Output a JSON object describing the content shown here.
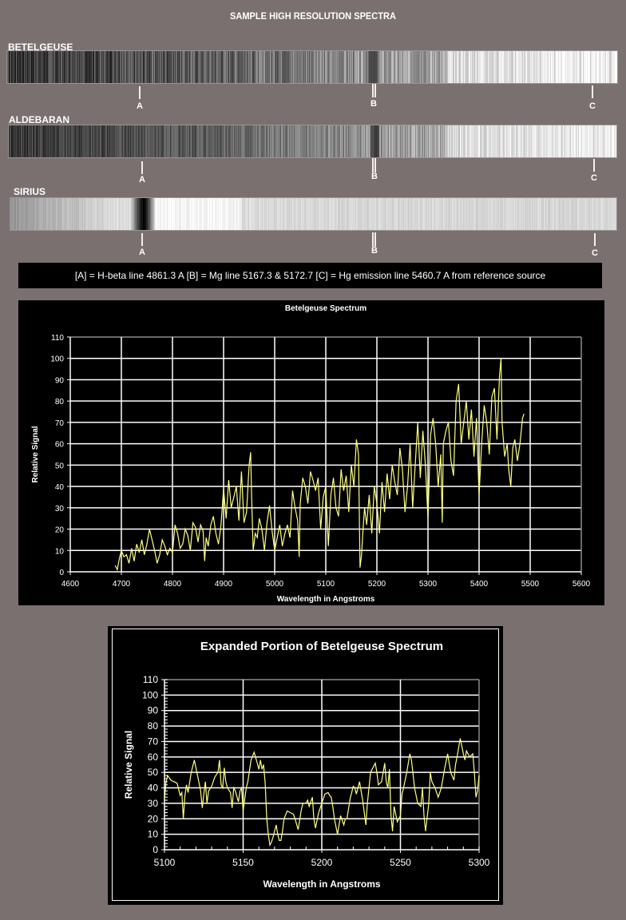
{
  "page": {
    "title": "SAMPLE HIGH RESOLUTION SPECTRA",
    "background": "#7a7070"
  },
  "spectra": [
    {
      "name": "BETELGEUSE",
      "profile": "betelgeuse"
    },
    {
      "name": "ALDEBARAN",
      "profile": "aldebaran"
    },
    {
      "name": "SIRIUS",
      "profile": "sirius"
    }
  ],
  "markers": {
    "a": "A",
    "b": "B",
    "c": "C"
  },
  "legend": {
    "text": "[A] = H-beta line 4861.3 A   [B] = Mg line 5167.3 & 5172.7    [C] = Hg emission line 5460.7 A from reference source"
  },
  "colors": {
    "trace": "#ffff80",
    "grid": "#ffffff",
    "chart_bg": "#000000"
  },
  "chart_data": [
    {
      "type": "line",
      "title": "Betelgeuse Spectrum",
      "xlabel": "Wavelength in Angstroms",
      "ylabel": "Relative Signal",
      "xlim": [
        4600,
        5600
      ],
      "ylim": [
        0,
        110
      ],
      "xticks": [
        4600,
        4700,
        4800,
        4900,
        5000,
        5100,
        5200,
        5300,
        5400,
        5500,
        5600
      ],
      "yticks": [
        0,
        10,
        20,
        30,
        40,
        50,
        60,
        70,
        80,
        90,
        100,
        110
      ],
      "grid": true,
      "legend": null,
      "series": [
        {
          "name": "Betelgeuse",
          "x": [
            4688,
            4692,
            4696,
            4700,
            4705,
            4710,
            4715,
            4720,
            4725,
            4730,
            4735,
            4740,
            4745,
            4750,
            4755,
            4760,
            4765,
            4770,
            4775,
            4780,
            4785,
            4790,
            4795,
            4800,
            4805,
            4810,
            4815,
            4820,
            4825,
            4830,
            4835,
            4840,
            4845,
            4850,
            4855,
            4860,
            4863,
            4866,
            4870,
            4875,
            4880,
            4885,
            4890,
            4895,
            4900,
            4905,
            4910,
            4915,
            4920,
            4925,
            4930,
            4935,
            4940,
            4945,
            4950,
            4953,
            4955,
            4958,
            4962,
            4966,
            4970,
            4975,
            4980,
            4985,
            4990,
            4995,
            5000,
            5005,
            5010,
            5015,
            5020,
            5025,
            5030,
            5035,
            5040,
            5045,
            5048,
            5050,
            5055,
            5060,
            5065,
            5070,
            5075,
            5080,
            5085,
            5090,
            5095,
            5100,
            5105,
            5110,
            5115,
            5120,
            5125,
            5130,
            5135,
            5140,
            5145,
            5150,
            5155,
            5160,
            5164,
            5167,
            5170,
            5173,
            5176,
            5180,
            5185,
            5190,
            5195,
            5200,
            5205,
            5210,
            5215,
            5220,
            5225,
            5230,
            5235,
            5240,
            5245,
            5250,
            5255,
            5260,
            5265,
            5270,
            5275,
            5280,
            5285,
            5290,
            5295,
            5300,
            5305,
            5310,
            5315,
            5320,
            5325,
            5328,
            5330,
            5335,
            5340,
            5345,
            5350,
            5355,
            5360,
            5365,
            5370,
            5375,
            5380,
            5385,
            5390,
            5395,
            5400,
            5405,
            5410,
            5415,
            5420,
            5425,
            5430,
            5435,
            5440,
            5443,
            5445,
            5450,
            5455,
            5458,
            5462,
            5466,
            5470,
            5475,
            5480,
            5485,
            5488
          ],
          "y": [
            3,
            1,
            6,
            10,
            7,
            8,
            4,
            11,
            5,
            13,
            9,
            15,
            8,
            13,
            20,
            15,
            10,
            4,
            8,
            15,
            12,
            8,
            11,
            9,
            22,
            18,
            11,
            13,
            20,
            17,
            10,
            23,
            21,
            14,
            22,
            19,
            5,
            16,
            12,
            22,
            26,
            18,
            13,
            22,
            39,
            25,
            43,
            30,
            35,
            40,
            24,
            47,
            23,
            28,
            50,
            56,
            34,
            10,
            18,
            16,
            25,
            20,
            10,
            23,
            31,
            19,
            10,
            16,
            22,
            12,
            18,
            22,
            16,
            38,
            30,
            24,
            7,
            32,
            44,
            40,
            32,
            47,
            43,
            38,
            44,
            20,
            35,
            40,
            12,
            36,
            44,
            30,
            26,
            48,
            38,
            45,
            28,
            50,
            40,
            62,
            55,
            2,
            8,
            20,
            30,
            22,
            36,
            18,
            40,
            32,
            18,
            42,
            28,
            46,
            34,
            50,
            42,
            36,
            58,
            48,
            28,
            40,
            60,
            30,
            50,
            70,
            44,
            66,
            50,
            25,
            64,
            72,
            60,
            40,
            55,
            23,
            60,
            66,
            70,
            52,
            45,
            80,
            88,
            60,
            70,
            80,
            62,
            76,
            54,
            72,
            36,
            60,
            78,
            70,
            55,
            82,
            86,
            62,
            92,
            100,
            70,
            54,
            60,
            48,
            40,
            58,
            62,
            52,
            60,
            72,
            74
          ]
        }
      ]
    },
    {
      "type": "line",
      "title": "Expanded Portion of Betelgeuse Spectrum",
      "xlabel": "Wavelength in Angstroms",
      "ylabel": "Relative Signal",
      "xlim": [
        5100,
        5300
      ],
      "ylim": [
        0,
        110
      ],
      "xticks": [
        5100,
        5150,
        5200,
        5250,
        5300
      ],
      "yticks": [
        0,
        10,
        20,
        30,
        40,
        50,
        60,
        70,
        80,
        90,
        100,
        110
      ],
      "grid": true,
      "legend": null,
      "series": [
        {
          "name": "Betelgeuse (expanded)",
          "x": [
            5100,
            5101,
            5102,
            5104,
            5106,
            5108,
            5110,
            5111,
            5112,
            5113,
            5114,
            5115,
            5117,
            5119,
            5121,
            5123,
            5124,
            5125,
            5126,
            5127,
            5128,
            5130,
            5132,
            5134,
            5135,
            5136,
            5137,
            5138,
            5139,
            5140,
            5142,
            5143,
            5144,
            5145,
            5147,
            5148,
            5149,
            5150,
            5152,
            5153,
            5155,
            5157,
            5159,
            5160,
            5161,
            5162,
            5163,
            5164,
            5165,
            5166,
            5167,
            5168,
            5169,
            5171,
            5172,
            5173,
            5174,
            5175,
            5176,
            5178,
            5180,
            5182,
            5183,
            5185,
            5187,
            5188,
            5190,
            5191,
            5192,
            5194,
            5195,
            5196,
            5198,
            5200,
            5202,
            5204,
            5205,
            5206,
            5207,
            5208,
            5210,
            5212,
            5214,
            5215,
            5216,
            5218,
            5220,
            5221,
            5222,
            5224,
            5226,
            5228,
            5229,
            5230,
            5231,
            5232,
            5234,
            5235,
            5236,
            5238,
            5240,
            5241,
            5242,
            5243,
            5244,
            5245,
            5246,
            5248,
            5250,
            5251,
            5252,
            5254,
            5256,
            5257,
            5259,
            5261,
            5263,
            5264,
            5265,
            5266,
            5268,
            5269,
            5270,
            5272,
            5274,
            5276,
            5278,
            5280,
            5282,
            5284,
            5285,
            5286,
            5288,
            5290,
            5291,
            5292,
            5294,
            5296,
            5297,
            5298,
            5299,
            5300
          ],
          "y": [
            33,
            44,
            48,
            45,
            44,
            43,
            35,
            37,
            20,
            35,
            42,
            37,
            50,
            58,
            48,
            38,
            27,
            36,
            44,
            30,
            38,
            41,
            47,
            50,
            58,
            42,
            40,
            53,
            44,
            40,
            37,
            27,
            40,
            38,
            31,
            38,
            40,
            25,
            40,
            44,
            58,
            63,
            56,
            52,
            58,
            52,
            55,
            43,
            20,
            10,
            3,
            5,
            8,
            16,
            10,
            6,
            6,
            12,
            20,
            25,
            24,
            23,
            20,
            13,
            26,
            30,
            30,
            32,
            28,
            34,
            20,
            14,
            24,
            30,
            36,
            37,
            35,
            34,
            28,
            20,
            10,
            22,
            16,
            20,
            20,
            33,
            41,
            40,
            36,
            44,
            32,
            16,
            30,
            40,
            50,
            52,
            56,
            50,
            42,
            44,
            56,
            44,
            40,
            52,
            22,
            12,
            28,
            18,
            22,
            36,
            40,
            50,
            62,
            58,
            40,
            30,
            28,
            40,
            22,
            12,
            30,
            50,
            44,
            40,
            34,
            40,
            52,
            62,
            50,
            45,
            55,
            60,
            72,
            62,
            58,
            64,
            60,
            62,
            50,
            34,
            38,
            48
          ]
        }
      ]
    }
  ]
}
